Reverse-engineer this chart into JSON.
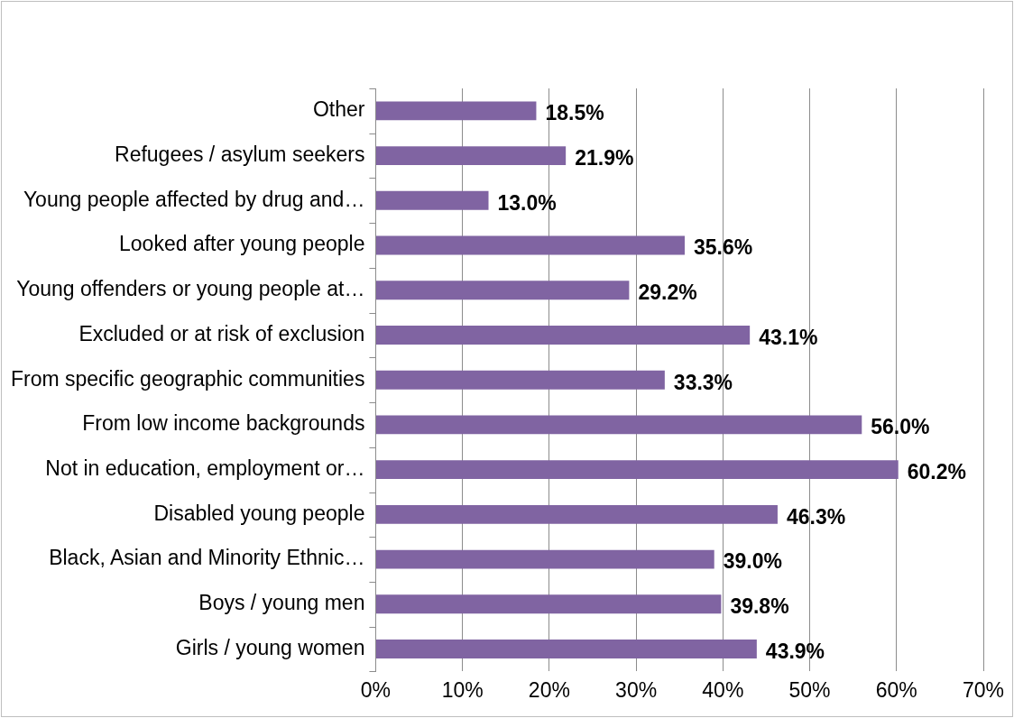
{
  "chart_data": {
    "type": "bar",
    "orientation": "horizontal",
    "categories": [
      "Other",
      "Refugees / asylum seekers",
      "Young people affected by drug and…",
      "Looked after young people",
      "Young offenders or young people at…",
      "Excluded or at risk of exclusion",
      "From specific geographic communities",
      "From low income backgrounds",
      "Not in education, employment or…",
      "Disabled young people",
      "Black, Asian and Minority Ethnic…",
      "Boys / young men",
      "Girls / young women"
    ],
    "values": [
      18.5,
      21.9,
      13.0,
      35.6,
      29.2,
      43.1,
      33.3,
      56.0,
      60.2,
      46.3,
      39.0,
      39.8,
      43.9
    ],
    "value_labels": [
      "18.5%",
      "21.9%",
      "13.0%",
      "35.6%",
      "29.2%",
      "43.1%",
      "33.3%",
      "56.0%",
      "60.2%",
      "46.3%",
      "39.0%",
      "39.8%",
      "43.9%"
    ],
    "color": "#8064a2",
    "xlim": [
      0,
      70
    ],
    "xticks": [
      {
        "value": 0,
        "label": "0%"
      },
      {
        "value": 10,
        "label": "10%"
      },
      {
        "value": 20,
        "label": "20%"
      },
      {
        "value": 30,
        "label": "30%"
      },
      {
        "value": 40,
        "label": "40%"
      },
      {
        "value": 50,
        "label": "50%"
      },
      {
        "value": 60,
        "label": "60%"
      },
      {
        "value": 70,
        "label": "70%"
      }
    ],
    "grid": "x",
    "legend": false
  }
}
